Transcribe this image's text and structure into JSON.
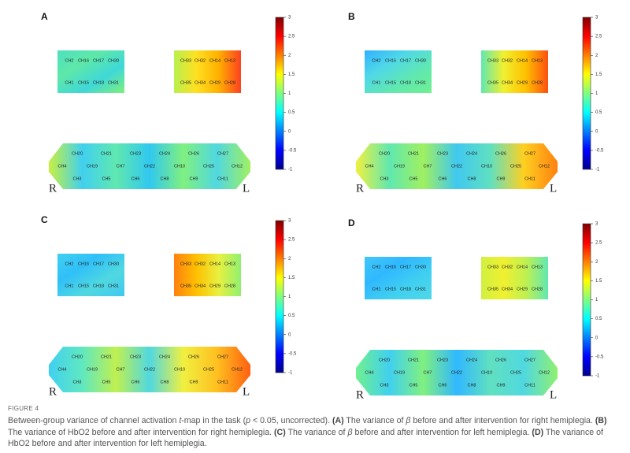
{
  "panels": [
    {
      "label": "A"
    },
    {
      "label": "B"
    },
    {
      "label": "C"
    },
    {
      "label": "D"
    }
  ],
  "channels": {
    "left_top": [
      "CH2",
      "CH16",
      "CH17",
      "CH30"
    ],
    "left_bottom": [
      "CH1",
      "CH15",
      "CH18",
      "CH31"
    ],
    "right_top": [
      "CH33",
      "CH32",
      "CH14",
      "CH13"
    ],
    "right_bottom": [
      "CH35",
      "CH34",
      "CH29",
      "CH28"
    ],
    "lower_row1": [
      "CH20",
      "CH21",
      "CH23",
      "CH24",
      "CH26",
      "CH27"
    ],
    "lower_row2": [
      "CH4",
      "CH19",
      "CH7",
      "CH22",
      "CH10",
      "CH25",
      "CH12"
    ],
    "lower_row3": [
      "CH3",
      "CH5",
      "CH6",
      "CH8",
      "CH9",
      "CH11"
    ]
  },
  "side_labels": [
    "R",
    "L"
  ],
  "colorbar": {
    "range": [
      -1,
      3
    ],
    "ticks": [
      3,
      2.5,
      2,
      1.5,
      1,
      0.5,
      0,
      -0.5,
      -1
    ]
  },
  "figure_label": "FIGURE 4",
  "caption": [
    {
      "text": "Between-group variance of channel activation ",
      "style": "normal"
    },
    {
      "text": "t",
      "style": "italic"
    },
    {
      "text": "-map in the task (",
      "style": "normal"
    },
    {
      "text": "p",
      "style": "italic"
    },
    {
      "text": " < 0.05, uncorrected). ",
      "style": "normal"
    },
    {
      "text": "(A)",
      "style": "bold"
    },
    {
      "text": " The variance of ",
      "style": "normal"
    },
    {
      "text": "β",
      "style": "italic"
    },
    {
      "text": " before and after intervention for right hemiplegia. ",
      "style": "normal"
    },
    {
      "text": "(B)",
      "style": "bold"
    },
    {
      "text": " The variance of HbO2 before and after intervention for right hemiplegia. ",
      "style": "normal"
    },
    {
      "text": "(C)",
      "style": "bold"
    },
    {
      "text": " The variance of ",
      "style": "normal"
    },
    {
      "text": "β",
      "style": "italic"
    },
    {
      "text": " before and after intervention for left hemiplegia. ",
      "style": "normal"
    },
    {
      "text": "(D)",
      "style": "bold"
    },
    {
      "text": " The variance of HbO2 before and after intervention for left hemiplegia.",
      "style": "normal"
    }
  ]
}
